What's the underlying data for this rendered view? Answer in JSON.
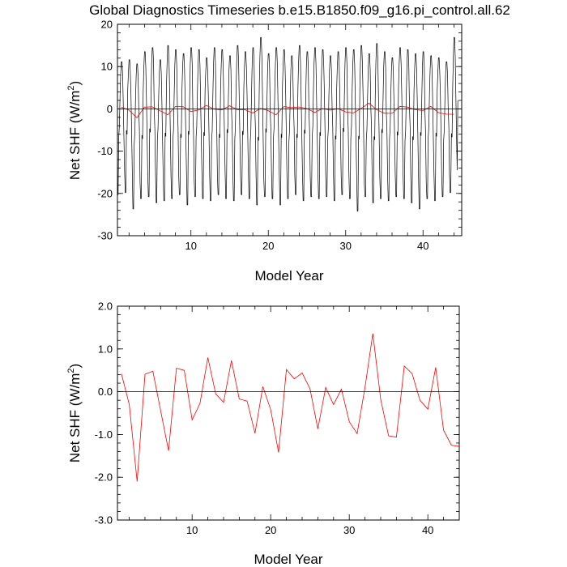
{
  "title": "Global Diagnostics Timeseries b.e15.B1850.f09_g16.pi_control.all.62",
  "chart_data": [
    {
      "type": "line",
      "xlabel": "Model Year",
      "ylabel_main": "Net SHF (W/m",
      "ylabel_sup": "2",
      "ylabel_end": ")",
      "xlim": [
        0.5,
        45
      ],
      "ylim": [
        -30,
        20
      ],
      "xticks": [
        10,
        20,
        30,
        40
      ],
      "xtick_labels": [
        "10",
        "20",
        "30",
        "40"
      ],
      "yticks": [
        -30,
        -20,
        -10,
        0,
        10,
        20
      ],
      "ytick_labels": [
        "-30",
        "-20",
        "-10",
        "0",
        "10",
        "20"
      ],
      "monthly_peaks": [
        11.5,
        12.0,
        11.0,
        14.0,
        15.0,
        12.0,
        15.5,
        14.5,
        13.5,
        15.0,
        14.5,
        12.5,
        15.0,
        14.5,
        13.0,
        15.5,
        14.0,
        15.0,
        17.5,
        13.5,
        15.0,
        14.5,
        13.0,
        15.5,
        14.0,
        15.0,
        14.5,
        13.0,
        14.0,
        15.0,
        14.5,
        15.5,
        13.5,
        16.0,
        14.0,
        12.5,
        15.0,
        14.5,
        13.5,
        14.0,
        13.0,
        12.5,
        11.5,
        17.5
      ],
      "monthly_troughs": [
        -21.0,
        -20.5,
        -24.5,
        -22.0,
        -21.5,
        -23.0,
        -22.5,
        -22.0,
        -21.0,
        -23.5,
        -21.5,
        -22.0,
        -22.5,
        -21.0,
        -22.0,
        -22.5,
        -21.0,
        -22.0,
        -23.5,
        -21.5,
        -22.0,
        -23.5,
        -22.0,
        -21.0,
        -22.5,
        -21.5,
        -22.0,
        -21.5,
        -22.5,
        -21.0,
        -22.0,
        -25.0,
        -21.5,
        -23.0,
        -22.0,
        -22.5,
        -21.5,
        -22.0,
        -23.0,
        -24.5,
        -22.0,
        -22.5,
        -21.5,
        -20.5
      ],
      "series": [
        {
          "color": "#000000",
          "kind": "monthly"
        },
        {
          "color": "#ff0000",
          "kind": "annual"
        }
      ],
      "annual_x": [
        1,
        2,
        3,
        4,
        5,
        6,
        7,
        8,
        9,
        10,
        11,
        12,
        13,
        14,
        15,
        16,
        17,
        18,
        19,
        20,
        21,
        22,
        23,
        24,
        25,
        26,
        27,
        28,
        29,
        30,
        31,
        32,
        33,
        34,
        35,
        36,
        37,
        38,
        39,
        40,
        41,
        42,
        43,
        44
      ],
      "annual_y": [
        0.42,
        -0.3,
        -2.1,
        0.41,
        0.48,
        -0.45,
        -1.38,
        0.55,
        0.5,
        -0.66,
        -0.27,
        0.8,
        -0.05,
        -0.25,
        0.73,
        -0.17,
        -0.22,
        -0.97,
        0.12,
        -0.42,
        -1.42,
        0.52,
        0.3,
        0.44,
        0.07,
        -0.87,
        0.1,
        -0.3,
        0.06,
        -0.7,
        -0.98,
        0.1,
        1.36,
        -0.18,
        -1.03,
        -1.06,
        0.6,
        0.42,
        -0.2,
        -0.41,
        0.57,
        -0.9,
        -1.25,
        -1.28
      ]
    },
    {
      "type": "line",
      "xlabel": "Model Year",
      "ylabel_main": "Net SHF (W/m",
      "ylabel_sup": "2",
      "ylabel_end": ")",
      "xlim": [
        0.5,
        44
      ],
      "ylim": [
        -3.0,
        2.0
      ],
      "xticks": [
        10,
        20,
        30,
        40
      ],
      "xtick_labels": [
        "10",
        "20",
        "30",
        "40"
      ],
      "yticks": [
        -3,
        -2,
        -1,
        0,
        1,
        2
      ],
      "ytick_labels": [
        "-3.0",
        "-2.0",
        "-1.0",
        "0.0",
        "1.0",
        "2.0"
      ],
      "series": [
        {
          "color": "#ff0000",
          "x": [
            1,
            2,
            3,
            4,
            5,
            6,
            7,
            8,
            9,
            10,
            11,
            12,
            13,
            14,
            15,
            16,
            17,
            18,
            19,
            20,
            21,
            22,
            23,
            24,
            25,
            26,
            27,
            28,
            29,
            30,
            31,
            32,
            33,
            34,
            35,
            36,
            37,
            38,
            39,
            40,
            41,
            42,
            43,
            44
          ],
          "y": [
            0.42,
            -0.3,
            -2.1,
            0.41,
            0.48,
            -0.45,
            -1.38,
            0.55,
            0.5,
            -0.66,
            -0.27,
            0.8,
            -0.05,
            -0.25,
            0.73,
            -0.17,
            -0.22,
            -0.97,
            0.12,
            -0.42,
            -1.42,
            0.52,
            0.3,
            0.44,
            0.07,
            -0.87,
            0.1,
            -0.3,
            0.06,
            -0.7,
            -0.98,
            0.1,
            1.36,
            -0.18,
            -1.03,
            -1.06,
            0.6,
            0.42,
            -0.2,
            -0.41,
            0.57,
            -0.9,
            -1.25,
            -1.28
          ]
        }
      ]
    }
  ]
}
